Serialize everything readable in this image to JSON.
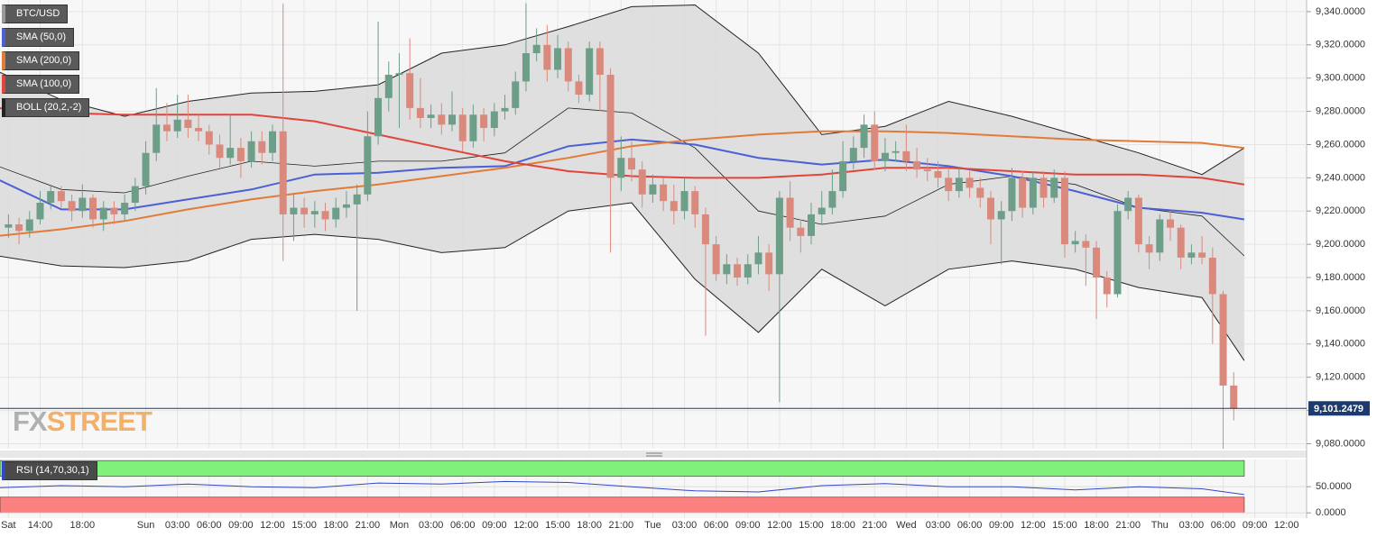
{
  "chart_data": [
    {
      "type": "candlestick",
      "symbol": "BTC/USD",
      "x": [
        -3,
        -2,
        -1,
        0,
        1,
        2,
        3,
        4,
        5,
        6,
        7,
        8,
        9,
        10,
        11,
        12,
        13,
        14,
        15,
        16,
        17,
        18,
        19,
        20,
        21,
        22,
        23,
        24,
        25,
        26,
        27,
        28,
        29,
        30,
        31,
        32,
        33,
        34,
        35,
        36,
        37,
        38,
        39,
        40,
        41,
        42,
        43,
        44,
        45,
        46,
        47,
        48,
        49,
        50,
        51,
        52,
        53,
        54,
        55,
        56,
        57,
        58,
        59,
        60,
        61,
        62,
        63,
        64,
        65,
        66,
        67,
        68,
        69,
        70,
        71,
        72,
        73,
        74,
        75,
        76,
        77,
        78,
        79,
        80,
        81,
        82,
        83,
        84,
        85,
        86,
        87,
        88,
        89,
        90,
        91,
        92,
        93,
        94,
        95,
        96,
        97,
        98,
        99,
        100,
        101,
        102,
        103,
        104,
        105,
        106,
        107,
        108,
        109,
        110,
        111,
        112,
        113
      ],
      "open": [
        9210,
        9212,
        9208,
        9215,
        9225,
        9232,
        9226,
        9220,
        9228,
        9215,
        9222,
        9218,
        9225,
        9235,
        9255,
        9272,
        9268,
        9275,
        9270,
        9268,
        9260,
        9252,
        9258,
        9250,
        9262,
        9255,
        9268,
        9218,
        9222,
        9218,
        9220,
        9215,
        9222,
        9224,
        9230,
        9265,
        9288,
        9302,
        9303,
        9282,
        9276,
        9278,
        9272,
        9278,
        9262,
        9278,
        9270,
        9280,
        9282,
        9298,
        9315,
        9320,
        9305,
        9318,
        9298,
        9290,
        9318,
        9302,
        9240,
        9252,
        9245,
        9230,
        9236,
        9226,
        9220,
        9232,
        9218,
        9200,
        9182,
        9188,
        9180,
        9188,
        9195,
        9182,
        9228,
        9210,
        9205,
        9218,
        9222,
        9232,
        9250,
        9258,
        9272,
        9250,
        9255,
        9256,
        9250,
        9245,
        9244,
        9240,
        9232,
        9240,
        9234,
        9228,
        9215,
        9220,
        9240,
        9222,
        9240,
        9228,
        9240,
        9200,
        9202,
        9198,
        9180,
        9170,
        9220,
        9228,
        9200,
        9195,
        9215,
        9210,
        9192,
        9195,
        9192,
        9170,
        9115
      ],
      "high": [
        9218,
        9216,
        9220,
        9232,
        9236,
        9235,
        9230,
        9236,
        9230,
        9226,
        9226,
        9230,
        9240,
        9262,
        9294,
        9285,
        9290,
        9290,
        9278,
        9272,
        9266,
        9278,
        9264,
        9268,
        9268,
        9272,
        9345,
        9230,
        9228,
        9226,
        9225,
        9228,
        9232,
        9236,
        9280,
        9334,
        9310,
        9315,
        9324,
        9300,
        9284,
        9285,
        9292,
        9282,
        9284,
        9282,
        9285,
        9290,
        9304,
        9345,
        9330,
        9332,
        9326,
        9322,
        9302,
        9322,
        9322,
        9306,
        9265,
        9262,
        9250,
        9242,
        9240,
        9236,
        9240,
        9235,
        9222,
        9205,
        9194,
        9192,
        9194,
        9205,
        9200,
        9232,
        9238,
        9215,
        9225,
        9232,
        9245,
        9262,
        9265,
        9278,
        9280,
        9264,
        9262,
        9272,
        9258,
        9252,
        9250,
        9246,
        9246,
        9244,
        9240,
        9232,
        9226,
        9246,
        9244,
        9244,
        9244,
        9245,
        9244,
        9208,
        9206,
        9202,
        9184,
        9224,
        9232,
        9230,
        9205,
        9218,
        9220,
        9212,
        9200,
        9205,
        9198,
        9172,
        9123
      ],
      "low": [
        9204,
        9200,
        9204,
        9212,
        9221,
        9222,
        9214,
        9216,
        9210,
        9208,
        9212,
        9214,
        9220,
        9230,
        9250,
        9262,
        9264,
        9264,
        9262,
        9254,
        9246,
        9248,
        9240,
        9246,
        9248,
        9250,
        9190,
        9202,
        9210,
        9210,
        9208,
        9210,
        9216,
        9160,
        9226,
        9260,
        9280,
        9270,
        9275,
        9270,
        9270,
        9266,
        9268,
        9256,
        9258,
        9262,
        9265,
        9275,
        9278,
        9292,
        9310,
        9298,
        9300,
        9292,
        9285,
        9286,
        9280,
        9195,
        9232,
        9238,
        9222,
        9225,
        9220,
        9212,
        9215,
        9210,
        9145,
        9178,
        9176,
        9175,
        9176,
        9182,
        9172,
        9105,
        9202,
        9195,
        9200,
        9212,
        9218,
        9228,
        9245,
        9252,
        9245,
        9244,
        9250,
        9244,
        9240,
        9238,
        9234,
        9226,
        9228,
        9228,
        9222,
        9200,
        9188,
        9214,
        9216,
        9218,
        9222,
        9225,
        9192,
        9195,
        9175,
        9155,
        9162,
        9168,
        9215,
        9195,
        9185,
        9190,
        9202,
        9185,
        9188,
        9188,
        9140,
        9077,
        9094
      ],
      "close": [
        9212,
        9208,
        9215,
        9225,
        9232,
        9226,
        9220,
        9228,
        9215,
        9222,
        9218,
        9225,
        9235,
        9255,
        9272,
        9268,
        9275,
        9270,
        9268,
        9260,
        9252,
        9258,
        9250,
        9262,
        9255,
        9268,
        9218,
        9222,
        9218,
        9220,
        9215,
        9222,
        9224,
        9230,
        9265,
        9288,
        9302,
        9303,
        9282,
        9276,
        9278,
        9272,
        9278,
        9262,
        9278,
        9270,
        9280,
        9282,
        9298,
        9315,
        9320,
        9305,
        9318,
        9298,
        9290,
        9318,
        9302,
        9240,
        9252,
        9245,
        9230,
        9236,
        9226,
        9220,
        9232,
        9218,
        9200,
        9182,
        9188,
        9180,
        9188,
        9195,
        9182,
        9228,
        9210,
        9205,
        9218,
        9222,
        9232,
        9250,
        9258,
        9272,
        9250,
        9255,
        9256,
        9250,
        9245,
        9244,
        9240,
        9232,
        9240,
        9234,
        9228,
        9215,
        9220,
        9240,
        9222,
        9240,
        9228,
        9240,
        9200,
        9202,
        9198,
        9180,
        9170,
        9220,
        9228,
        9200,
        9195,
        9215,
        9210,
        9192,
        9195,
        9192,
        9170,
        9115,
        9101
      ],
      "up_color": "#6c9e88",
      "down_color": "#d98a7d",
      "xlim": [
        -3.8,
        119.9
      ],
      "ylim": [
        9077,
        9347
      ],
      "yticks": [
        {
          "value": 9080,
          "label": "9,080.0000"
        },
        {
          "value": 9100,
          "label": "9,100.0000"
        },
        {
          "value": 9120,
          "label": "9,120.0000"
        },
        {
          "value": 9140,
          "label": "9,140.0000"
        },
        {
          "value": 9160,
          "label": "9,160.0000"
        },
        {
          "value": 9180,
          "label": "9,180.0000"
        },
        {
          "value": 9200,
          "label": "9,200.0000"
        },
        {
          "value": 9220,
          "label": "9,220.0000"
        },
        {
          "value": 9240,
          "label": "9,240.0000"
        },
        {
          "value": 9260,
          "label": "9,260.0000"
        },
        {
          "value": 9280,
          "label": "9,280.0000"
        },
        {
          "value": 9300,
          "label": "9,300.0000"
        },
        {
          "value": 9320,
          "label": "9,320.0000"
        },
        {
          "value": 9340,
          "label": "9,340.0000"
        }
      ],
      "xticks": [
        {
          "value": -3,
          "label": "Sat"
        },
        {
          "value": 0,
          "label": "14:00"
        },
        {
          "value": 4,
          "label": "18:00"
        },
        {
          "value": 10,
          "label": "Sun"
        },
        {
          "value": 13,
          "label": "03:00"
        },
        {
          "value": 16,
          "label": "06:00"
        },
        {
          "value": 19,
          "label": "09:00"
        },
        {
          "value": 22,
          "label": "12:00"
        },
        {
          "value": 25,
          "label": "15:00"
        },
        {
          "value": 28,
          "label": "18:00"
        },
        {
          "value": 31,
          "label": "21:00"
        },
        {
          "value": 34,
          "label": "Mon"
        },
        {
          "value": 37,
          "label": "03:00"
        },
        {
          "value": 40,
          "label": "06:00"
        },
        {
          "value": 43,
          "label": "09:00"
        },
        {
          "value": 46,
          "label": "12:00"
        },
        {
          "value": 49,
          "label": "15:00"
        },
        {
          "value": 52,
          "label": "18:00"
        },
        {
          "value": 55,
          "label": "21:00"
        },
        {
          "value": 58,
          "label": "Tue"
        },
        {
          "value": 61,
          "label": "03:00"
        },
        {
          "value": 64,
          "label": "06:00"
        },
        {
          "value": 67,
          "label": "09:00"
        },
        {
          "value": 70,
          "label": "12:00"
        },
        {
          "value": 73,
          "label": "15:00"
        },
        {
          "value": 76,
          "label": "18:00"
        },
        {
          "value": 79,
          "label": "21:00"
        },
        {
          "value": 82,
          "label": "Wed"
        },
        {
          "value": 85,
          "label": "03:00"
        },
        {
          "value": 88,
          "label": "06:00"
        },
        {
          "value": 91,
          "label": "09:00"
        },
        {
          "value": 94,
          "label": "12:00"
        },
        {
          "value": 97,
          "label": "15:00"
        },
        {
          "value": 100,
          "label": "18:00"
        },
        {
          "value": 103,
          "label": "21:00"
        },
        {
          "value": 106,
          "label": "Thu"
        },
        {
          "value": 109,
          "label": "03:00"
        },
        {
          "value": 112,
          "label": "06:00"
        },
        {
          "value": 115,
          "label": "09:00"
        },
        {
          "value": 118,
          "label": "12:00"
        }
      ],
      "grid": true,
      "overlays": [
        {
          "name": "SMA (50,0)",
          "color": "#4b5fd6",
          "x": [
            -4,
            2,
            8,
            14,
            20,
            26,
            32,
            38,
            44,
            50,
            56,
            62,
            68,
            74,
            80,
            86,
            92,
            98,
            104,
            110,
            114
          ],
          "values": [
            9239,
            9221,
            9221,
            9227,
            9233,
            9242,
            9243,
            9246,
            9247,
            9259,
            9263,
            9260,
            9252,
            9248,
            9251,
            9247,
            9241,
            9232,
            9222,
            9219,
            9215
          ]
        },
        {
          "name": "SMA (200,0)",
          "color": "#e07b39",
          "x": [
            -4,
            2,
            8,
            14,
            20,
            26,
            32,
            38,
            44,
            50,
            56,
            62,
            68,
            74,
            80,
            86,
            92,
            98,
            104,
            110,
            114
          ],
          "values": [
            9205,
            9209,
            9214,
            9221,
            9227,
            9232,
            9236,
            9241,
            9246,
            9252,
            9259,
            9263,
            9266,
            9268,
            9268,
            9267,
            9265,
            9263,
            9262,
            9261,
            9258
          ]
        },
        {
          "name": "SMA (100,0)",
          "color": "#e0443a",
          "x": [
            -4,
            2,
            8,
            14,
            20,
            26,
            32,
            38,
            44,
            50,
            56,
            62,
            68,
            74,
            80,
            86,
            92,
            98,
            104,
            110,
            114
          ],
          "values": [
            9282,
            9279,
            9278,
            9278,
            9278,
            9274,
            9266,
            9258,
            9250,
            9244,
            9241,
            9240,
            9240,
            9242,
            9246,
            9246,
            9244,
            9242,
            9242,
            9240,
            9236
          ]
        }
      ],
      "bollinger": {
        "name": "BOLL (20,2,-2)",
        "color": "#222222",
        "fill": "#dcdcdc",
        "x": [
          -4,
          2,
          8,
          14,
          20,
          26,
          32,
          38,
          44,
          50,
          56,
          62,
          68,
          74,
          80,
          86,
          92,
          98,
          104,
          110,
          114
        ],
        "upper": [
          9304,
          9287,
          9277,
          9286,
          9291,
          9292,
          9296,
          9315,
          9320,
          9331,
          9343,
          9344,
          9315,
          9266,
          9271,
          9286,
          9277,
          9266,
          9255,
          9242,
          9258
        ],
        "middle": [
          9247,
          9233,
          9231,
          9241,
          9250,
          9247,
          9250,
          9250,
          9255,
          9282,
          9279,
          9258,
          9220,
          9212,
          9217,
          9236,
          9241,
          9236,
          9222,
          9217,
          9193
        ],
        "lower": [
          9193,
          9187,
          9186,
          9190,
          9203,
          9206,
          9203,
          9195,
          9198,
          9220,
          9225,
          9179,
          9147,
          9185,
          9163,
          9185,
          9190,
          9185,
          9174,
          9168,
          9130
        ]
      },
      "last_price": {
        "value": 9101.2479,
        "label": "9,101.2479"
      },
      "watermark": [
        "FX",
        "STREET"
      ]
    },
    {
      "type": "line",
      "name": "RSI (14,70,30,1)",
      "color": "#3347c9",
      "x": [
        -4,
        2,
        8,
        14,
        20,
        26,
        32,
        38,
        44,
        50,
        56,
        62,
        68,
        74,
        80,
        86,
        92,
        98,
        104,
        110,
        114
      ],
      "values": [
        48,
        52,
        50,
        55,
        50,
        48,
        57,
        55,
        60,
        58,
        50,
        42,
        40,
        52,
        56,
        50,
        50,
        44,
        50,
        46,
        35
      ],
      "xlim": [
        -3.8,
        119.9
      ],
      "ylim": [
        -10,
        102
      ],
      "yticks": [
        {
          "value": 0,
          "label": "0.0000"
        },
        {
          "value": 50,
          "label": "50.0000"
        }
      ],
      "overbought": [
        70,
        100
      ],
      "oversold": [
        0,
        30
      ]
    }
  ]
}
